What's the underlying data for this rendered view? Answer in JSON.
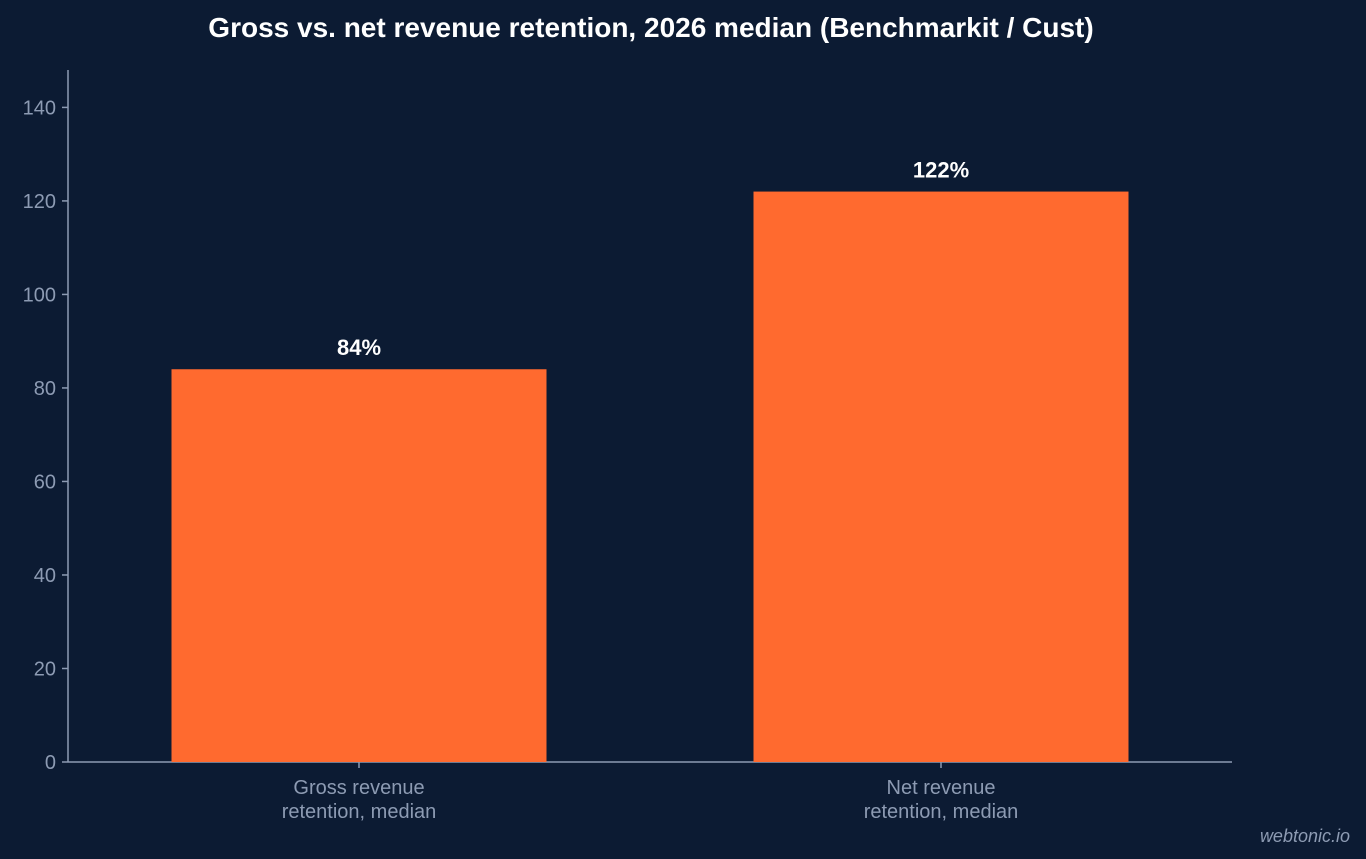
{
  "chart_data": {
    "type": "bar",
    "title": "Gross vs. net revenue retention, 2026 median (Benchmarkit / Cust)",
    "xlabel": "",
    "ylabel": "",
    "categories": [
      [
        "Gross revenue",
        "retention, median"
      ],
      [
        "Net revenue",
        "retention, median"
      ]
    ],
    "values": [
      84,
      122
    ],
    "data_labels": [
      "84%",
      "122%"
    ],
    "yticks": [
      0,
      20,
      40,
      60,
      80,
      100,
      120,
      140
    ],
    "ylim": [
      0,
      148
    ],
    "grid": false,
    "legend": "none",
    "colors": {
      "background": "#0c1b33",
      "bar": "#ff6a2f",
      "axis": "#8d9bb3",
      "tick_text": "#8d9bb3",
      "data_label": "#ffffff",
      "title": "#ffffff"
    }
  },
  "watermark": "webtonic.io"
}
